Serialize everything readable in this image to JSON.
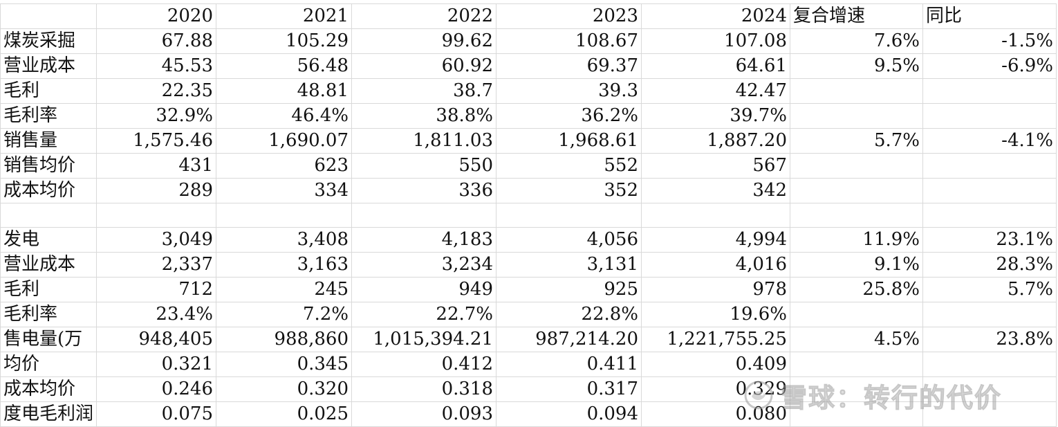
{
  "header": {
    "blank": "",
    "years": [
      "2020",
      "2021",
      "2022",
      "2023",
      "2024"
    ],
    "cagr": "复合增速",
    "yoy": "同比"
  },
  "rows": [
    {
      "label": "煤炭采掘",
      "values": [
        "67.88",
        "105.29",
        "99.62",
        "108.67",
        "107.08"
      ],
      "cagr": "7.6%",
      "yoy": "-1.5%"
    },
    {
      "label": "营业成本",
      "values": [
        "45.53",
        "56.48",
        "60.92",
        "69.37",
        "64.61"
      ],
      "cagr": "9.5%",
      "yoy": "-6.9%"
    },
    {
      "label": "毛利",
      "values": [
        "22.35",
        "48.81",
        "38.7",
        "39.3",
        "42.47"
      ],
      "cagr": "",
      "yoy": ""
    },
    {
      "label": "毛利率",
      "values": [
        "32.9%",
        "46.4%",
        "38.8%",
        "36.2%",
        "39.7%"
      ],
      "cagr": "",
      "yoy": ""
    },
    {
      "label": "销售量",
      "values": [
        "1,575.46",
        "1,690.07",
        "1,811.03",
        "1,968.61",
        "1,887.20"
      ],
      "cagr": "5.7%",
      "yoy": "-4.1%"
    },
    {
      "label": "销售均价",
      "values": [
        "431",
        "623",
        "550",
        "552",
        "567"
      ],
      "cagr": "",
      "yoy": ""
    },
    {
      "label": "成本均价",
      "values": [
        "289",
        "334",
        "336",
        "352",
        "342"
      ],
      "cagr": "",
      "yoy": ""
    },
    {
      "label": "",
      "values": [
        "",
        "",
        "",
        "",
        ""
      ],
      "cagr": "",
      "yoy": ""
    },
    {
      "label": "发电",
      "values": [
        "3,049",
        "3,408",
        "4,183",
        "4,056",
        "4,994"
      ],
      "cagr": "11.9%",
      "yoy": "23.1%"
    },
    {
      "label": "营业成本",
      "values": [
        "2,337",
        "3,163",
        "3,234",
        "3,131",
        "4,016"
      ],
      "cagr": "9.1%",
      "yoy": "28.3%"
    },
    {
      "label": "毛利",
      "values": [
        "712",
        "245",
        "949",
        "925",
        "978"
      ],
      "cagr": "25.8%",
      "yoy": "5.7%"
    },
    {
      "label": "毛利率",
      "values": [
        "23.4%",
        "7.2%",
        "22.7%",
        "22.8%",
        "19.6%"
      ],
      "cagr": "",
      "yoy": ""
    },
    {
      "label": "售电量(万",
      "values": [
        "948,405",
        "988,860",
        "1,015,394.21",
        "987,214.20",
        "1,221,755.25"
      ],
      "cagr": "4.5%",
      "yoy": "23.8%"
    },
    {
      "label": "均价",
      "values": [
        "0.321",
        "0.345",
        "0.412",
        "0.411",
        "0.409"
      ],
      "cagr": "",
      "yoy": ""
    },
    {
      "label": "成本均价",
      "values": [
        "0.246",
        "0.320",
        "0.318",
        "0.317",
        "0.329"
      ],
      "cagr": "",
      "yoy": ""
    },
    {
      "label": "度电毛利润",
      "values": [
        "0.075",
        "0.025",
        "0.093",
        "0.094",
        "0.080"
      ],
      "cagr": "",
      "yoy": ""
    }
  ],
  "watermark": {
    "text": "雪球：转行的代价",
    "icon": "snowball-logo-icon"
  }
}
